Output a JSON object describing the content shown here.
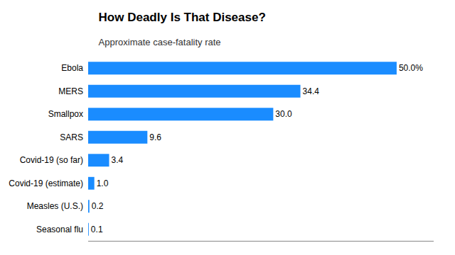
{
  "chart_data": {
    "type": "bar",
    "orientation": "horizontal",
    "title": "How Deadly Is That Disease?",
    "subtitle": "Approximate case-fatality rate",
    "categories": [
      "Ebola",
      "MERS",
      "Smallpox",
      "SARS",
      "Covid-19 (so far)",
      "Covid-19 (estimate)",
      "Measles (U.S.)",
      "Seasonal flu"
    ],
    "values": [
      50.0,
      34.4,
      30.0,
      9.6,
      3.4,
      1.0,
      0.2,
      0.1
    ],
    "value_labels": [
      "50.0%",
      "34.4",
      "30.0",
      "9.6",
      "3.4",
      "1.0",
      "0.2",
      "0.1"
    ],
    "data_labels": true,
    "color": "#1a8cff",
    "xlim": [
      0,
      56
    ],
    "grid": false,
    "tick_labels": "y"
  }
}
